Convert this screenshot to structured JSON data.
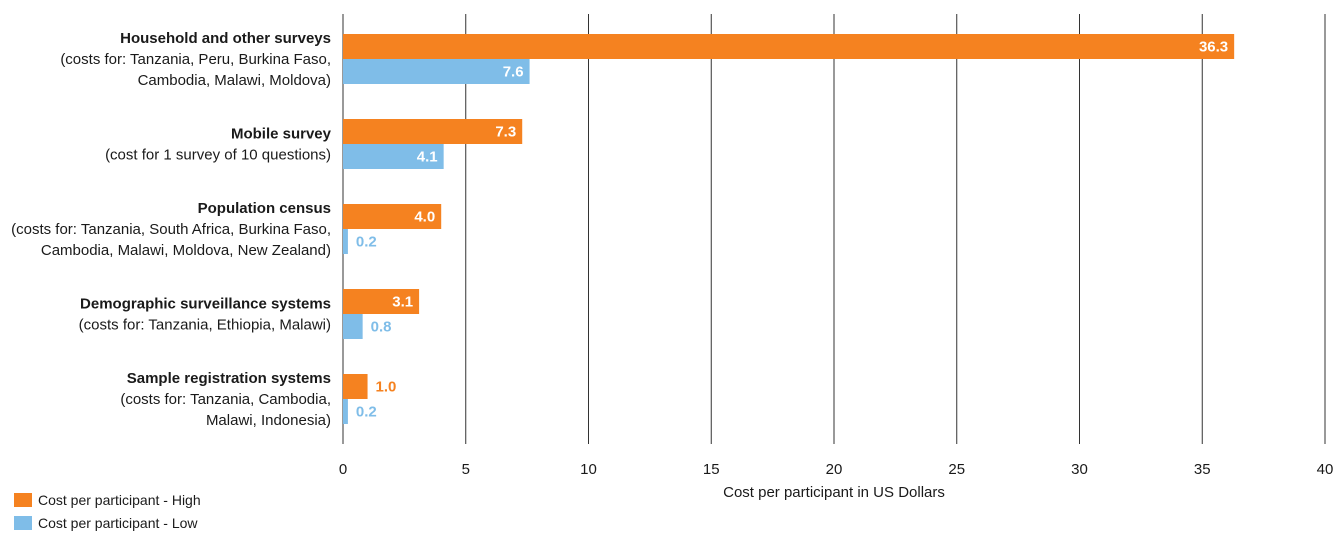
{
  "chart_data": {
    "type": "bar",
    "orientation": "horizontal",
    "categories": [
      {
        "label": "Household and other surveys",
        "note": [
          "(costs for: Tanzania, Peru, Burkina Faso,",
          "Cambodia, Malawi, Moldova)"
        ]
      },
      {
        "label": "Mobile survey",
        "note": [
          "(cost for 1 survey of 10 questions)"
        ]
      },
      {
        "label": "Population census",
        "note": [
          "(costs for: Tanzania, South Africa, Burkina Faso,",
          "Cambodia, Malawi, Moldova, New Zealand)"
        ]
      },
      {
        "label": "Demographic surveillance systems",
        "note": [
          "(costs for: Tanzania, Ethiopia, Malawi)"
        ]
      },
      {
        "label": "Sample registration systems",
        "note": [
          "(costs for: Tanzania, Cambodia,",
          "Malawi, Indonesia)"
        ]
      }
    ],
    "series": [
      {
        "name": "Cost per participant - High",
        "color": "#f58220",
        "values": [
          36.3,
          7.3,
          4.0,
          3.1,
          1.0
        ],
        "labels": [
          "36.3",
          "7.3",
          "4.0",
          "3.1",
          "1.0"
        ]
      },
      {
        "name": "Cost per participant - Low",
        "color": "#7fbde8",
        "values": [
          7.6,
          4.1,
          0.2,
          0.8,
          0.2
        ],
        "labels": [
          "7.6",
          "4.1",
          "0.2",
          "0.8",
          "0.2"
        ]
      }
    ],
    "xlabel": "Cost per participant in US Dollars",
    "xlim": [
      0,
      40
    ],
    "xticks": [
      "0",
      "5",
      "10",
      "15",
      "20",
      "25",
      "30",
      "35",
      "40"
    ],
    "grid": true,
    "legend_position": "bottom-left"
  }
}
